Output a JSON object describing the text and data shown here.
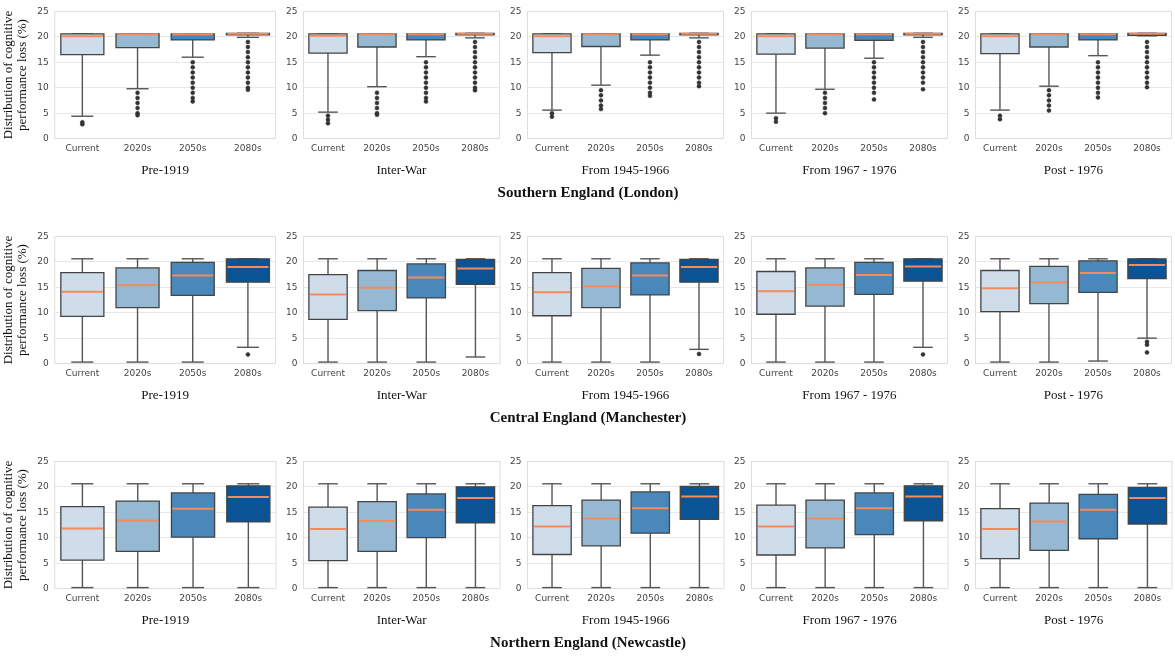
{
  "chart_data": [
    {
      "type": "box",
      "categories": [
        "Current",
        "2020s",
        "2050s",
        "2080s"
      ],
      "colors": [
        "#cfdcea",
        "#95b8d3",
        "#4a88bb",
        "#0a5496"
      ],
      "ylim": [
        0,
        25
      ],
      "yticks": [
        0,
        5,
        10,
        15,
        20,
        25
      ],
      "grid": "y",
      "xlabel": "Pre-1919",
      "ylabel": "Distribution of cognitive performance loss (%)",
      "boxes": [
        {
          "low": 4.4,
          "q1": 16.5,
          "median": 20.1,
          "q3": 20.6,
          "high": 20.6,
          "outliers": [
            3.2,
            2.8
          ]
        },
        {
          "low": 9.8,
          "q1": 17.9,
          "median": 20.5,
          "q3": 20.6,
          "high": 20.6,
          "outliers": [
            9,
            8,
            7,
            6,
            5,
            4.6
          ]
        },
        {
          "low": 16,
          "q1": 19.4,
          "median": 20.5,
          "q3": 20.6,
          "high": 20.6,
          "outliers": [
            15,
            14,
            13,
            12,
            11,
            10,
            9,
            8,
            7.3
          ]
        },
        {
          "low": 19.9,
          "q1": 20.4,
          "median": 20.6,
          "q3": 20.7,
          "high": 20.7,
          "outliers": [
            19,
            18,
            17,
            16,
            15,
            14,
            13,
            12,
            11,
            10,
            9.6
          ]
        }
      ]
    },
    {
      "type": "box",
      "categories": [
        "Current",
        "2020s",
        "2050s",
        "2080s"
      ],
      "colors": [
        "#cfdcea",
        "#95b8d3",
        "#4a88bb",
        "#0a5496"
      ],
      "ylim": [
        0,
        25
      ],
      "yticks": [
        0,
        5,
        10,
        15,
        20,
        25
      ],
      "grid": "y",
      "xlabel": "Inter-War",
      "boxes": [
        {
          "low": 5.2,
          "q1": 16.8,
          "median": 20.2,
          "q3": 20.6,
          "high": 20.6,
          "outliers": [
            4.5,
            3.7,
            3
          ]
        },
        {
          "low": 10.2,
          "q1": 18,
          "median": 20.5,
          "q3": 20.6,
          "high": 20.6,
          "outliers": [
            9,
            8,
            7,
            6,
            5,
            4.7
          ]
        },
        {
          "low": 16.1,
          "q1": 19.4,
          "median": 20.5,
          "q3": 20.6,
          "high": 20.6,
          "outliers": [
            15,
            14,
            13,
            12,
            11,
            10,
            9,
            8,
            7.3
          ]
        },
        {
          "low": 19.8,
          "q1": 20.4,
          "median": 20.6,
          "q3": 20.7,
          "high": 20.7,
          "outliers": [
            19,
            18,
            17,
            16,
            15,
            14,
            13,
            12,
            11,
            10,
            9.5
          ]
        }
      ]
    },
    {
      "type": "box",
      "categories": [
        "Current",
        "2020s",
        "2050s",
        "2080s"
      ],
      "colors": [
        "#cfdcea",
        "#95b8d3",
        "#4a88bb",
        "#0a5496"
      ],
      "ylim": [
        0,
        25
      ],
      "yticks": [
        0,
        5,
        10,
        15,
        20,
        25
      ],
      "grid": "y",
      "xlabel": "From 1945-1966",
      "annotations": [
        "Southern England (London)"
      ],
      "boxes": [
        {
          "low": 5.6,
          "q1": 16.9,
          "median": 20.1,
          "q3": 20.6,
          "high": 20.6,
          "outliers": [
            5,
            4.3
          ]
        },
        {
          "low": 10.5,
          "q1": 18.1,
          "median": 20.5,
          "q3": 20.6,
          "high": 20.6,
          "outliers": [
            9.5,
            8.5,
            7.5,
            6.5,
            5.8
          ]
        },
        {
          "low": 16.4,
          "q1": 19.4,
          "median": 20.5,
          "q3": 20.6,
          "high": 20.6,
          "outliers": [
            15,
            14,
            13,
            12,
            11,
            10,
            9,
            8.4
          ]
        },
        {
          "low": 19.8,
          "q1": 20.4,
          "median": 20.6,
          "q3": 20.7,
          "high": 20.7,
          "outliers": [
            19,
            18,
            17,
            16,
            15,
            14,
            13,
            12,
            11,
            10.3
          ]
        }
      ]
    },
    {
      "type": "box",
      "categories": [
        "Current",
        "2020s",
        "2050s",
        "2080s"
      ],
      "colors": [
        "#cfdcea",
        "#95b8d3",
        "#4a88bb",
        "#0a5496"
      ],
      "ylim": [
        0,
        25
      ],
      "yticks": [
        0,
        5,
        10,
        15,
        20,
        25
      ],
      "grid": "y",
      "xlabel": "From 1967 - 1976",
      "boxes": [
        {
          "low": 5,
          "q1": 16.6,
          "median": 20.1,
          "q3": 20.6,
          "high": 20.6,
          "outliers": [
            4,
            3.3
          ]
        },
        {
          "low": 9.7,
          "q1": 17.8,
          "median": 20.5,
          "q3": 20.6,
          "high": 20.6,
          "outliers": [
            9,
            8,
            7,
            6,
            5
          ]
        },
        {
          "low": 15.8,
          "q1": 19.3,
          "median": 20.5,
          "q3": 20.6,
          "high": 20.6,
          "outliers": [
            15,
            14,
            13,
            12,
            11,
            10,
            9,
            7.7
          ]
        },
        {
          "low": 19.9,
          "q1": 20.4,
          "median": 20.6,
          "q3": 20.7,
          "high": 20.7,
          "outliers": [
            19,
            18,
            17,
            16,
            15,
            14,
            13,
            12,
            11,
            9.7
          ]
        }
      ]
    },
    {
      "type": "box",
      "categories": [
        "Current",
        "2020s",
        "2050s",
        "2080s"
      ],
      "colors": [
        "#cfdcea",
        "#95b8d3",
        "#4a88bb",
        "#0a5496"
      ],
      "ylim": [
        0,
        25
      ],
      "yticks": [
        0,
        5,
        10,
        15,
        20,
        25
      ],
      "grid": "y",
      "xlabel": "Post - 1976",
      "boxes": [
        {
          "low": 5.6,
          "q1": 16.7,
          "median": 20.1,
          "q3": 20.6,
          "high": 20.6,
          "outliers": [
            4.5,
            3.8
          ]
        },
        {
          "low": 10.3,
          "q1": 18,
          "median": 20.5,
          "q3": 20.6,
          "high": 20.6,
          "outliers": [
            9.5,
            8.5,
            7.5,
            6.5,
            5.5
          ]
        },
        {
          "low": 16.3,
          "q1": 19.4,
          "median": 20.5,
          "q3": 20.6,
          "high": 20.6,
          "outliers": [
            15,
            14,
            13,
            12,
            11,
            10,
            9,
            8.1
          ]
        },
        {
          "low": 20.2,
          "q1": 20.3,
          "median": 20.6,
          "q3": 20.7,
          "high": 20.7,
          "outliers": [
            19,
            18,
            17,
            16,
            15,
            14,
            13,
            12,
            11,
            10.1
          ]
        }
      ]
    },
    {
      "type": "box",
      "categories": [
        "Current",
        "2020s",
        "2050s",
        "2080s"
      ],
      "colors": [
        "#cfdcea",
        "#95b8d3",
        "#4a88bb",
        "#0a5496"
      ],
      "ylim": [
        0,
        25
      ],
      "yticks": [
        0,
        5,
        10,
        15,
        20,
        25
      ],
      "grid": "y",
      "xlabel": "Pre-1919",
      "ylabel": "Distribution of cognitive performance loss (%)",
      "boxes": [
        {
          "low": 0.3,
          "q1": 9.3,
          "median": 14.1,
          "q3": 17.9,
          "high": 20.6
        },
        {
          "low": 0.3,
          "q1": 11,
          "median": 15.4,
          "q3": 18.8,
          "high": 20.6
        },
        {
          "low": 0.3,
          "q1": 13.4,
          "median": 17.3,
          "q3": 19.9,
          "high": 20.6
        },
        {
          "low": 3.2,
          "q1": 16,
          "median": 19,
          "q3": 20.6,
          "high": 20.6,
          "outliers": [
            1.8
          ]
        }
      ]
    },
    {
      "type": "box",
      "categories": [
        "Current",
        "2020s",
        "2050s",
        "2080s"
      ],
      "colors": [
        "#cfdcea",
        "#95b8d3",
        "#4a88bb",
        "#0a5496"
      ],
      "ylim": [
        0,
        25
      ],
      "yticks": [
        0,
        5,
        10,
        15,
        20,
        25
      ],
      "grid": "y",
      "xlabel": "Inter-War",
      "boxes": [
        {
          "low": 0.3,
          "q1": 8.7,
          "median": 13.6,
          "q3": 17.5,
          "high": 20.6
        },
        {
          "low": 0.3,
          "q1": 10.4,
          "median": 14.9,
          "q3": 18.3,
          "high": 20.6
        },
        {
          "low": 0.3,
          "q1": 12.9,
          "median": 16.9,
          "q3": 19.6,
          "high": 20.6
        },
        {
          "low": 1.3,
          "q1": 15.6,
          "median": 18.7,
          "q3": 20.5,
          "high": 20.6
        }
      ]
    },
    {
      "type": "box",
      "categories": [
        "Current",
        "2020s",
        "2050s",
        "2080s"
      ],
      "colors": [
        "#cfdcea",
        "#95b8d3",
        "#4a88bb",
        "#0a5496"
      ],
      "ylim": [
        0,
        25
      ],
      "yticks": [
        0,
        5,
        10,
        15,
        20,
        25
      ],
      "grid": "y",
      "xlabel": "From 1945-1966",
      "annotations": [
        "Central England (Manchester)"
      ],
      "boxes": [
        {
          "low": 0.3,
          "q1": 9.4,
          "median": 14,
          "q3": 17.9,
          "high": 20.6
        },
        {
          "low": 0.3,
          "q1": 11,
          "median": 15.2,
          "q3": 18.7,
          "high": 20.6
        },
        {
          "low": 0.3,
          "q1": 13.5,
          "median": 17.3,
          "q3": 19.8,
          "high": 20.6
        },
        {
          "low": 2.8,
          "q1": 16,
          "median": 19,
          "q3": 20.5,
          "high": 20.6,
          "outliers": [
            1.9
          ]
        }
      ]
    },
    {
      "type": "box",
      "categories": [
        "Current",
        "2020s",
        "2050s",
        "2080s"
      ],
      "colors": [
        "#cfdcea",
        "#95b8d3",
        "#4a88bb",
        "#0a5496"
      ],
      "ylim": [
        0,
        25
      ],
      "yticks": [
        0,
        5,
        10,
        15,
        20,
        25
      ],
      "grid": "y",
      "xlabel": "From 1967 - 1976",
      "boxes": [
        {
          "low": 0.3,
          "q1": 9.7,
          "median": 14.2,
          "q3": 18.1,
          "high": 20.6
        },
        {
          "low": 0.3,
          "q1": 11.3,
          "median": 15.5,
          "q3": 18.8,
          "high": 20.6
        },
        {
          "low": 0.3,
          "q1": 13.6,
          "median": 17.4,
          "q3": 19.9,
          "high": 20.6
        },
        {
          "low": 3.2,
          "q1": 16.2,
          "median": 19.1,
          "q3": 20.6,
          "high": 20.6,
          "outliers": [
            1.8
          ]
        }
      ]
    },
    {
      "type": "box",
      "categories": [
        "Current",
        "2020s",
        "2050s",
        "2080s"
      ],
      "colors": [
        "#cfdcea",
        "#95b8d3",
        "#4a88bb",
        "#0a5496"
      ],
      "ylim": [
        0,
        25
      ],
      "yticks": [
        0,
        5,
        10,
        15,
        20,
        25
      ],
      "grid": "y",
      "xlabel": "Post - 1976",
      "boxes": [
        {
          "low": 0.3,
          "q1": 10.2,
          "median": 14.8,
          "q3": 18.3,
          "high": 20.6
        },
        {
          "low": 0.3,
          "q1": 11.8,
          "median": 16,
          "q3": 19.1,
          "high": 20.6
        },
        {
          "low": 0.5,
          "q1": 14,
          "median": 17.8,
          "q3": 20.2,
          "high": 20.6
        },
        {
          "low": 5,
          "q1": 16.7,
          "median": 19.4,
          "q3": 20.6,
          "high": 20.6,
          "outliers": [
            4.3,
            3.7,
            2.2
          ]
        }
      ]
    },
    {
      "type": "box",
      "categories": [
        "Current",
        "2020s",
        "2050s",
        "2080s"
      ],
      "colors": [
        "#cfdcea",
        "#95b8d3",
        "#4a88bb",
        "#0a5496"
      ],
      "ylim": [
        0,
        25
      ],
      "yticks": [
        0,
        5,
        10,
        15,
        20,
        25
      ],
      "grid": "y",
      "xlabel": "Pre-1919",
      "ylabel": "Distribution of cognitive performance loss (%)",
      "boxes": [
        {
          "low": 0.2,
          "q1": 5.6,
          "median": 11.8,
          "q3": 16.1,
          "high": 20.6
        },
        {
          "low": 0.2,
          "q1": 7.3,
          "median": 13.4,
          "q3": 17.2,
          "high": 20.6
        },
        {
          "low": 0.2,
          "q1": 10.1,
          "median": 15.7,
          "q3": 18.8,
          "high": 20.6
        },
        {
          "low": 0.2,
          "q1": 13.1,
          "median": 18,
          "q3": 20.2,
          "high": 20.6
        }
      ]
    },
    {
      "type": "box",
      "categories": [
        "Current",
        "2020s",
        "2050s",
        "2080s"
      ],
      "colors": [
        "#cfdcea",
        "#95b8d3",
        "#4a88bb",
        "#0a5496"
      ],
      "ylim": [
        0,
        25
      ],
      "yticks": [
        0,
        5,
        10,
        15,
        20,
        25
      ],
      "grid": "y",
      "xlabel": "Inter-War",
      "boxes": [
        {
          "low": 0.2,
          "q1": 5.5,
          "median": 11.7,
          "q3": 16,
          "high": 20.6
        },
        {
          "low": 0.2,
          "q1": 7.3,
          "median": 13.3,
          "q3": 17.1,
          "high": 20.6
        },
        {
          "low": 0.2,
          "q1": 10,
          "median": 15.5,
          "q3": 18.6,
          "high": 20.6
        },
        {
          "low": 0.2,
          "q1": 12.9,
          "median": 17.8,
          "q3": 20,
          "high": 20.6
        }
      ]
    },
    {
      "type": "box",
      "categories": [
        "Current",
        "2020s",
        "2050s",
        "2080s"
      ],
      "colors": [
        "#cfdcea",
        "#95b8d3",
        "#4a88bb",
        "#0a5496"
      ],
      "ylim": [
        0,
        25
      ],
      "yticks": [
        0,
        5,
        10,
        15,
        20,
        25
      ],
      "grid": "y",
      "xlabel": "From 1945-1966",
      "annotations": [
        "Northern England (Newcastle)"
      ],
      "boxes": [
        {
          "low": 0.2,
          "q1": 6.7,
          "median": 12.2,
          "q3": 16.3,
          "high": 20.6
        },
        {
          "low": 0.2,
          "q1": 8.4,
          "median": 13.8,
          "q3": 17.4,
          "high": 20.6
        },
        {
          "low": 0.2,
          "q1": 10.9,
          "median": 15.8,
          "q3": 19,
          "high": 20.6
        },
        {
          "low": 0.2,
          "q1": 13.6,
          "median": 18.1,
          "q3": 20.1,
          "high": 20.6
        }
      ]
    },
    {
      "type": "box",
      "categories": [
        "Current",
        "2020s",
        "2050s",
        "2080s"
      ],
      "colors": [
        "#cfdcea",
        "#95b8d3",
        "#4a88bb",
        "#0a5496"
      ],
      "ylim": [
        0,
        25
      ],
      "yticks": [
        0,
        5,
        10,
        15,
        20,
        25
      ],
      "grid": "y",
      "xlabel": "From 1967 - 1976",
      "boxes": [
        {
          "low": 0.2,
          "q1": 6.6,
          "median": 12.2,
          "q3": 16.4,
          "high": 20.6
        },
        {
          "low": 0.2,
          "q1": 8,
          "median": 13.8,
          "q3": 17.4,
          "high": 20.6
        },
        {
          "low": 0.2,
          "q1": 10.6,
          "median": 15.8,
          "q3": 18.8,
          "high": 20.6
        },
        {
          "low": 0.2,
          "q1": 13.3,
          "median": 18.1,
          "q3": 20.2,
          "high": 20.6
        }
      ]
    },
    {
      "type": "box",
      "categories": [
        "Current",
        "2020s",
        "2050s",
        "2080s"
      ],
      "colors": [
        "#cfdcea",
        "#95b8d3",
        "#4a88bb",
        "#0a5496"
      ],
      "ylim": [
        0,
        25
      ],
      "yticks": [
        0,
        5,
        10,
        15,
        20,
        25
      ],
      "grid": "y",
      "xlabel": "Post - 1976",
      "boxes": [
        {
          "low": 0.2,
          "q1": 5.9,
          "median": 11.7,
          "q3": 15.7,
          "high": 20.6
        },
        {
          "low": 0.2,
          "q1": 7.5,
          "median": 13.2,
          "q3": 16.8,
          "high": 20.6
        },
        {
          "low": 0.2,
          "q1": 9.8,
          "median": 15.5,
          "q3": 18.5,
          "high": 20.6
        },
        {
          "low": 0.2,
          "q1": 12.7,
          "median": 17.8,
          "q3": 19.9,
          "high": 20.6
        }
      ]
    }
  ]
}
